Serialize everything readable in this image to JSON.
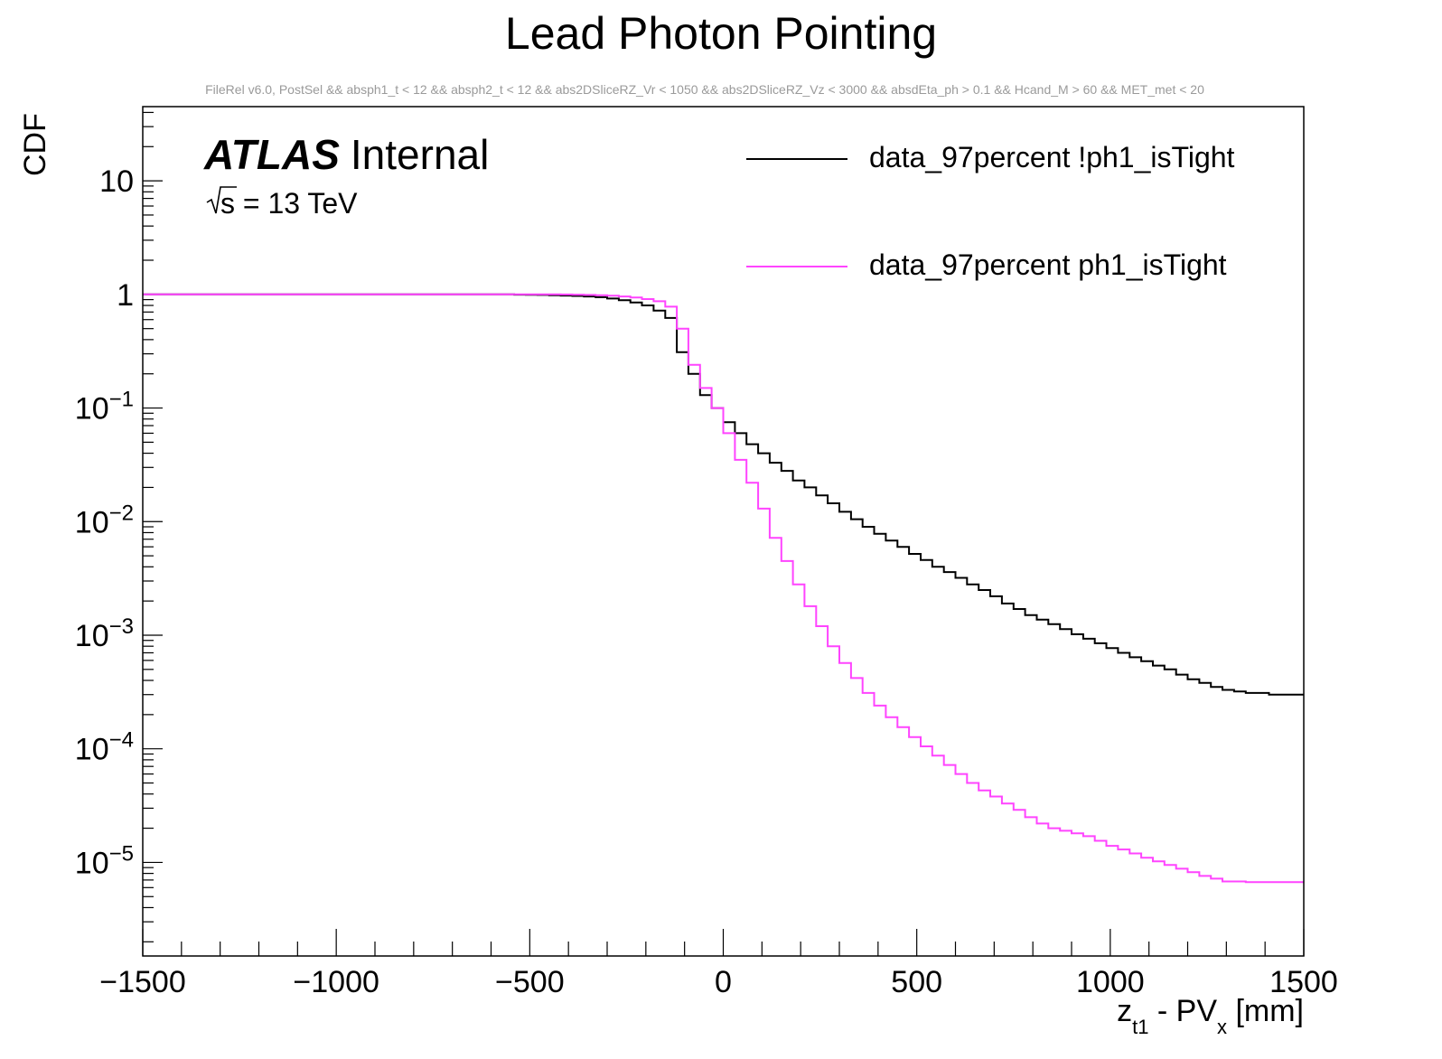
{
  "chart_data": {
    "type": "line",
    "title": "Lead Photon Pointing",
    "subtitle": "FileRel v6.0, PostSel &&  absph1_t < 12 && absph2_t < 12 && abs2DSliceRZ_Vr < 1050 && abs2DSliceRZ_Vz < 3000 && absdEta_ph > 0.1 && Hcand_M > 60 && MET_met < 20",
    "ylabel": "CDF",
    "xlabel": {
      "base": "z",
      "sub1": "t1",
      "middle": " - PV",
      "sub2": "x",
      "tail": " [mm]"
    },
    "xlim": [
      -1500,
      1500
    ],
    "ylim": [
      1.5e-06,
      45
    ],
    "yscale": "log",
    "x_ticks": [
      "−1500",
      "−1000",
      "−500",
      "0",
      "500",
      "1000",
      "1500"
    ],
    "y_ticks": [
      {
        "base": "10",
        "exp": "−5"
      },
      {
        "base": "10",
        "exp": "−4"
      },
      {
        "base": "10",
        "exp": "−3"
      },
      {
        "base": "10",
        "exp": "−2"
      },
      {
        "base": "10",
        "exp": "−1"
      },
      {
        "base": "1",
        "exp": ""
      },
      {
        "base": "10",
        "exp": ""
      }
    ],
    "legend_position": "top-right",
    "bin_width": 30,
    "series": [
      {
        "name": "data_97percent !ph1_isTight",
        "color": "#000000",
        "values": [
          1.0,
          1.0,
          1.0,
          1.0,
          1.0,
          1.0,
          1.0,
          1.0,
          1.0,
          1.0,
          1.0,
          1.0,
          1.0,
          1.0,
          1.0,
          1.0,
          1.0,
          1.0,
          1.0,
          1.0,
          1.0,
          1.0,
          1.0,
          1.0,
          1.0,
          1.0,
          1.0,
          1.0,
          1.0,
          1.0,
          1.0,
          1.0,
          0.995,
          0.993,
          0.99,
          0.985,
          0.978,
          0.97,
          0.96,
          0.945,
          0.92,
          0.89,
          0.85,
          0.8,
          0.72,
          0.62,
          0.31,
          0.2,
          0.13,
          0.1,
          0.075,
          0.06,
          0.048,
          0.04,
          0.033,
          0.028,
          0.023,
          0.02,
          0.017,
          0.0145,
          0.0122,
          0.0105,
          0.009,
          0.0078,
          0.0068,
          0.006,
          0.0052,
          0.0046,
          0.004,
          0.0036,
          0.0032,
          0.0028,
          0.0025,
          0.0022,
          0.0019,
          0.0017,
          0.0015,
          0.00137,
          0.00125,
          0.00113,
          0.00102,
          0.00093,
          0.00085,
          0.00077,
          0.0007,
          0.00064,
          0.00059,
          0.00054,
          0.0005,
          0.00045,
          0.00041,
          0.00038,
          0.00035,
          0.00033,
          0.00032,
          0.00031,
          0.00031,
          0.0003,
          0.0003,
          0.0003
        ]
      },
      {
        "name": "data_97percent ph1_isTight",
        "color": "#ff44ff",
        "values": [
          1.0,
          1.0,
          1.0,
          1.0,
          1.0,
          1.0,
          1.0,
          1.0,
          1.0,
          1.0,
          1.0,
          1.0,
          1.0,
          1.0,
          1.0,
          1.0,
          1.0,
          1.0,
          1.0,
          1.0,
          1.0,
          1.0,
          1.0,
          1.0,
          1.0,
          1.0,
          1.0,
          1.0,
          1.0,
          1.0,
          1.0,
          1.0,
          1.0,
          1.0,
          1.0,
          1.0,
          0.998,
          0.995,
          0.99,
          0.985,
          0.975,
          0.96,
          0.94,
          0.91,
          0.87,
          0.78,
          0.5,
          0.24,
          0.15,
          0.1,
          0.06,
          0.035,
          0.022,
          0.013,
          0.0072,
          0.0045,
          0.0028,
          0.0018,
          0.0012,
          0.0008,
          0.00057,
          0.00042,
          0.00031,
          0.00024,
          0.00019,
          0.000155,
          0.000127,
          0.000105,
          8.7e-05,
          7.2e-05,
          6e-05,
          5e-05,
          4.3e-05,
          3.8e-05,
          3.3e-05,
          2.9e-05,
          2.5e-05,
          2.2e-05,
          2e-05,
          1.9e-05,
          1.8e-05,
          1.7e-05,
          1.55e-05,
          1.4e-05,
          1.3e-05,
          1.2e-05,
          1.1e-05,
          1.02e-05,
          9.5e-06,
          8.8e-06,
          8.2e-06,
          7.6e-06,
          7.2e-06,
          6.8e-06,
          6.8e-06,
          6.7e-06,
          6.7e-06,
          6.7e-06,
          6.7e-06,
          6.7e-06
        ]
      }
    ],
    "annotations": {
      "atlas": "ATLAS",
      "internal": "Internal",
      "energy_root": "s",
      "energy_text": " = 13 TeV"
    }
  }
}
